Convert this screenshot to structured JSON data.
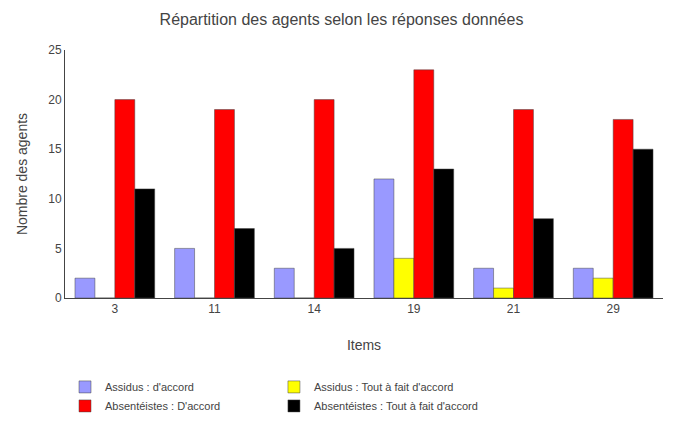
{
  "chart_data": {
    "type": "bar",
    "title": "Répartition des agents selon les réponses données",
    "xlabel": "Items",
    "ylabel": "Nombre des agents",
    "categories": [
      "3",
      "11",
      "14",
      "19",
      "21",
      "29"
    ],
    "series": [
      {
        "name": "Assidus : d'accord",
        "color": "#9999FF",
        "values": [
          2,
          5,
          3,
          12,
          3,
          3
        ]
      },
      {
        "name": "Assidus : Tout à fait d'accord",
        "color": "#FFFF00",
        "values": [
          0,
          0,
          0,
          4,
          1,
          2
        ]
      },
      {
        "name": "Absentéistes : D'accord",
        "color": "#FF0000",
        "values": [
          20,
          19,
          20,
          23,
          19,
          18
        ]
      },
      {
        "name": "Absentéistes : Tout à fait d'accord",
        "color": "#000000",
        "values": [
          11,
          7,
          5,
          13,
          8,
          15
        ]
      }
    ],
    "ylim": [
      0,
      25
    ],
    "yticks": [
      0,
      5,
      10,
      15,
      20,
      25
    ],
    "grid": false,
    "legend": "bottom"
  }
}
